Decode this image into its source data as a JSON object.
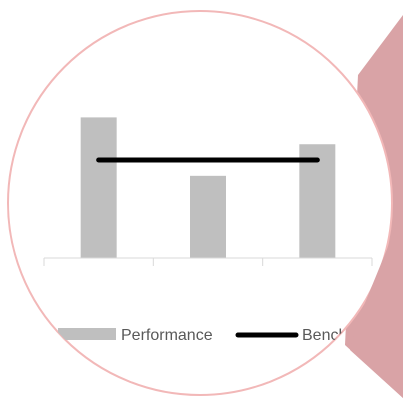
{
  "colors": {
    "background": "#ffffff",
    "circle_border": "#f2b8b8",
    "wedge": "#d9a3a6",
    "bar": "#bfbfbf",
    "benchmark_line": "#000000",
    "axis": "#d9d9d9",
    "legend_text": "#595959"
  },
  "chart_data": {
    "type": "bar",
    "title": "",
    "xlabel": "",
    "ylabel": "",
    "categories": [
      "",
      "",
      ""
    ],
    "ylim": [
      0,
      100
    ],
    "grid": false,
    "legend_placement": "bottom",
    "series": [
      {
        "name": "Performance",
        "kind": "bar",
        "values": [
          89,
          52,
          72
        ]
      },
      {
        "name": "Benchmark",
        "kind": "line",
        "values": [
          62,
          62,
          62
        ]
      }
    ]
  },
  "legend": {
    "performance_label": "Performance",
    "benchmark_label": "Benchmark"
  }
}
